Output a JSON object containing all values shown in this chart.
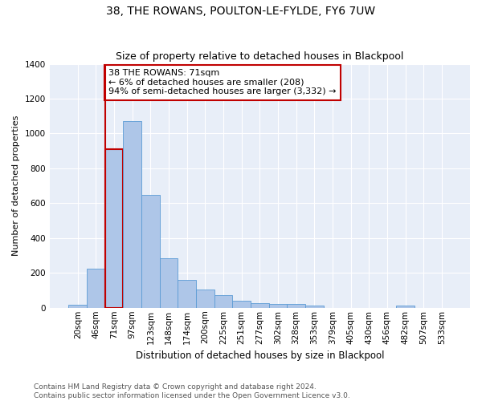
{
  "title": "38, THE ROWANS, POULTON-LE-FYLDE, FY6 7UW",
  "subtitle": "Size of property relative to detached houses in Blackpool",
  "xlabel": "Distribution of detached houses by size in Blackpool",
  "ylabel": "Number of detached properties",
  "categories": [
    "20sqm",
    "46sqm",
    "71sqm",
    "97sqm",
    "123sqm",
    "148sqm",
    "174sqm",
    "200sqm",
    "225sqm",
    "251sqm",
    "277sqm",
    "302sqm",
    "328sqm",
    "353sqm",
    "379sqm",
    "405sqm",
    "430sqm",
    "456sqm",
    "482sqm",
    "507sqm",
    "533sqm"
  ],
  "values": [
    18,
    225,
    910,
    1070,
    648,
    285,
    160,
    105,
    72,
    40,
    27,
    22,
    20,
    14,
    0,
    0,
    0,
    0,
    14,
    0,
    0
  ],
  "bar_color": "#aec6e8",
  "bar_edge_color": "#5b9bd5",
  "highlight_bar_index": 2,
  "vline_color": "#c00000",
  "annotation_text": "38 THE ROWANS: 71sqm\n← 6% of detached houses are smaller (208)\n94% of semi-detached houses are larger (3,332) →",
  "annotation_box_color": "white",
  "annotation_box_edge": "#c00000",
  "ylim": [
    0,
    1400
  ],
  "yticks": [
    0,
    200,
    400,
    600,
    800,
    1000,
    1200,
    1400
  ],
  "background_color": "#e8eef8",
  "footer_text": "Contains HM Land Registry data © Crown copyright and database right 2024.\nContains public sector information licensed under the Open Government Licence v3.0.",
  "title_fontsize": 10,
  "subtitle_fontsize": 9,
  "xlabel_fontsize": 8.5,
  "ylabel_fontsize": 8,
  "annotation_fontsize": 8,
  "footer_fontsize": 6.5,
  "tick_fontsize": 7.5
}
